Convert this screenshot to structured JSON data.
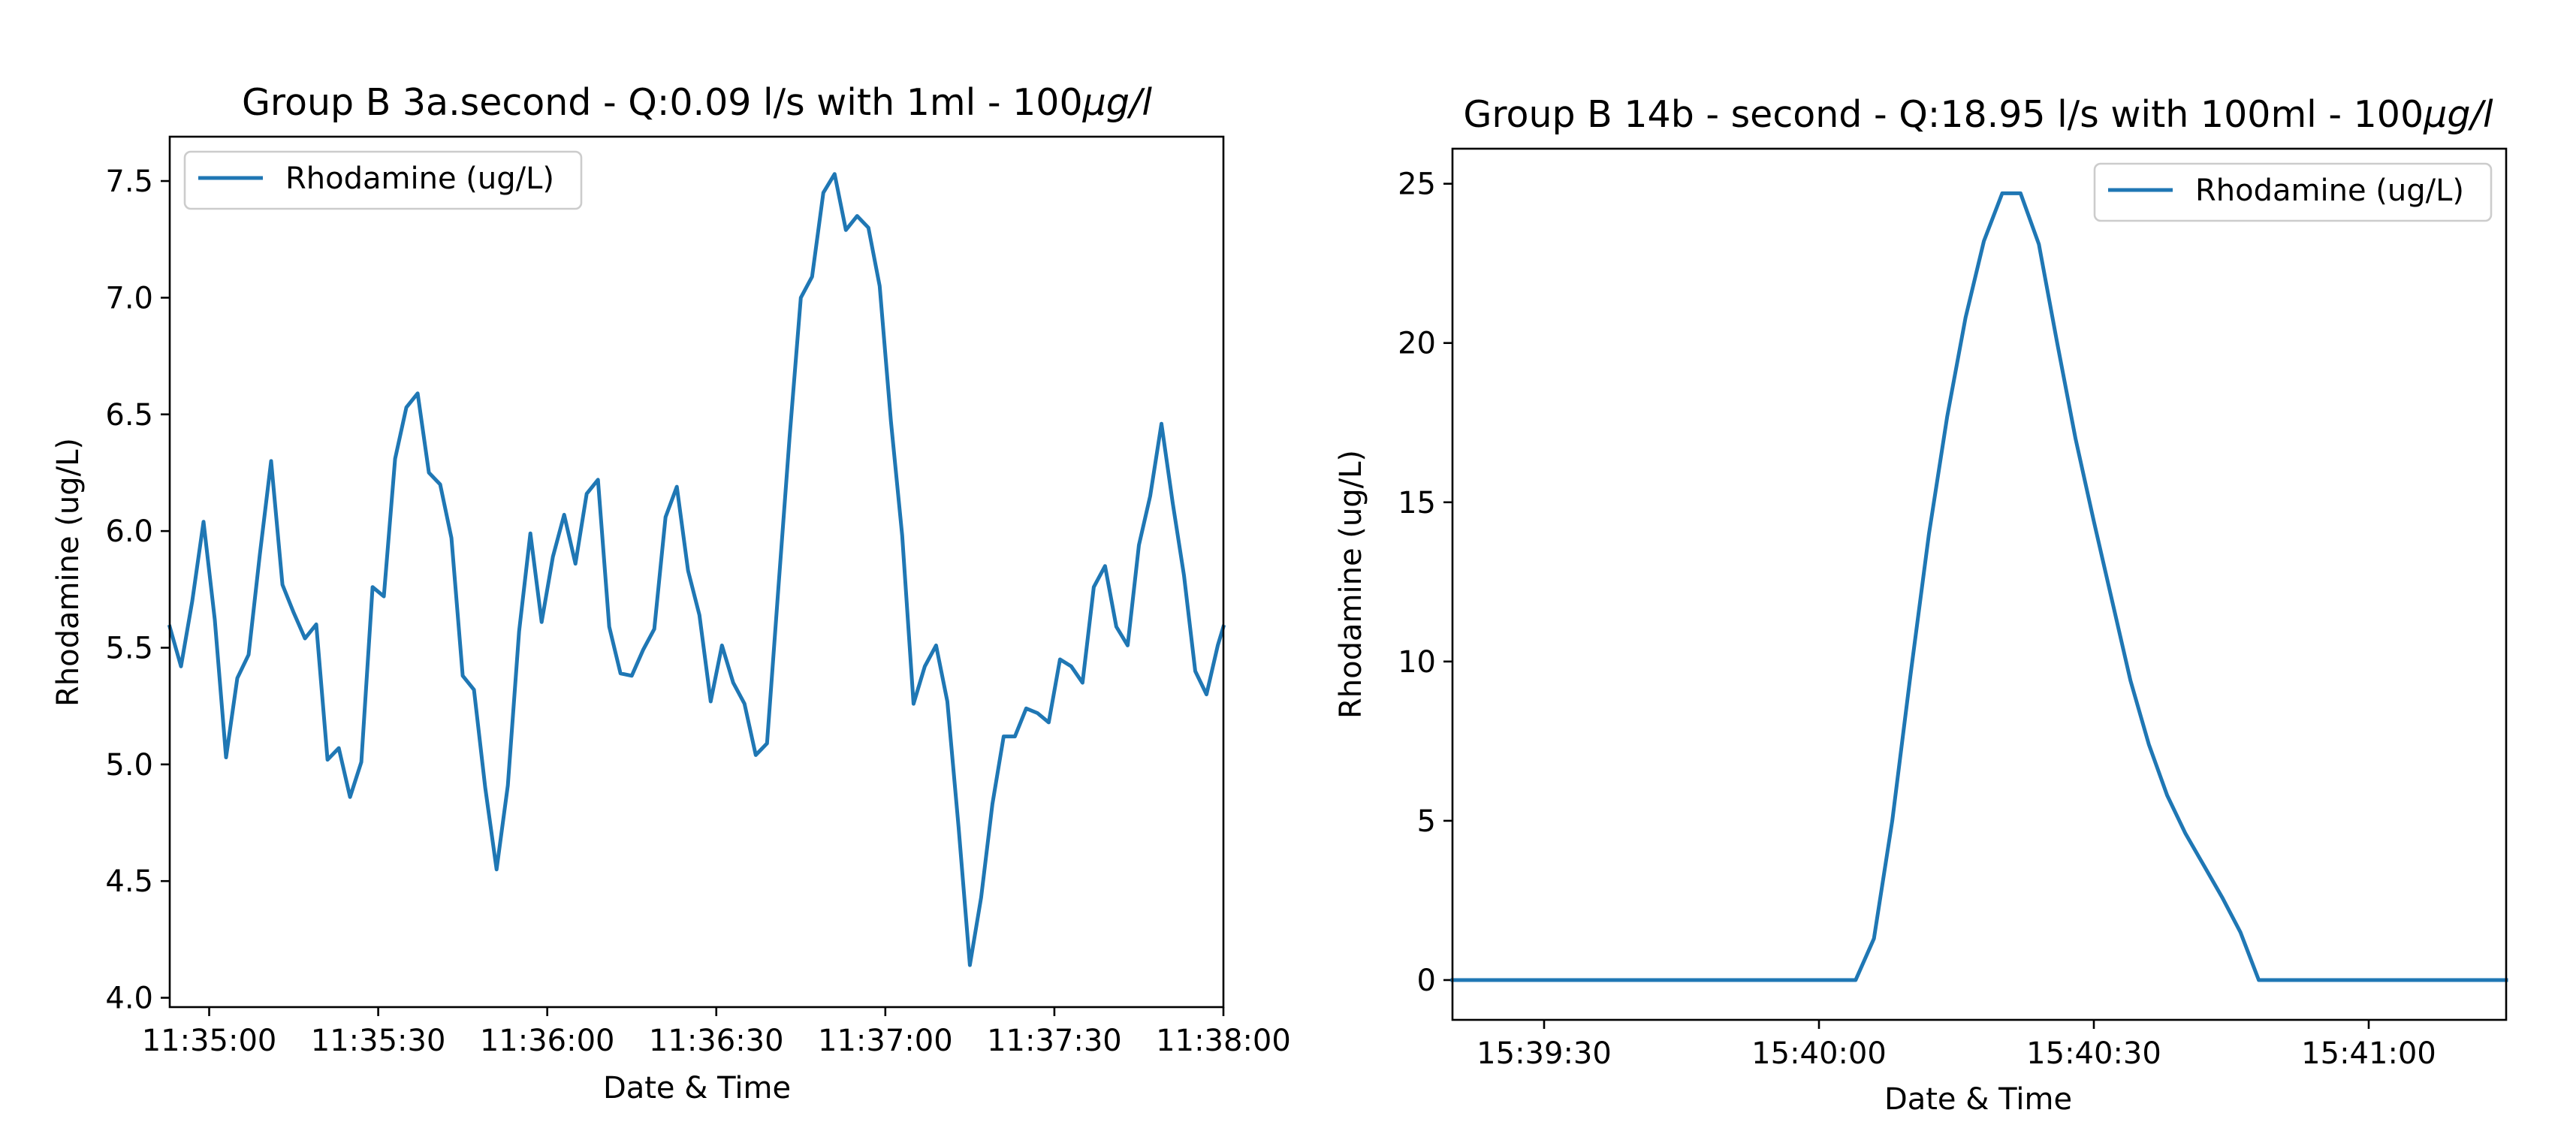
{
  "chart_data": [
    {
      "type": "line",
      "title_main": "Group B 3a.second - Q:0.09 l/s with 1ml - 100",
      "title_unit": "μg/l",
      "xlabel": "Date & Time",
      "ylabel": "Rhodamine (ug/L)",
      "xlim": [
        "11:34:53",
        "11:38:00"
      ],
      "ylim": [
        3.96,
        7.69
      ],
      "x_ticks": [
        "11:35:00",
        "11:35:30",
        "11:36:00",
        "11:36:30",
        "11:37:00",
        "11:37:30",
        "11:38:00"
      ],
      "y_ticks": [
        "4.0",
        "4.5",
        "5.0",
        "5.5",
        "6.0",
        "6.5",
        "7.0",
        "7.5"
      ],
      "legend": "upper left",
      "grid": false,
      "series": [
        {
          "name": "Rhodamine (ug/L)",
          "color": "#1f77b4",
          "x": [
            "11:34:53",
            "11:34:55",
            "11:34:57",
            "11:34:59",
            "11:35:01",
            "11:35:03",
            "11:35:05",
            "11:35:07",
            "11:35:09",
            "11:35:11",
            "11:35:13",
            "11:35:15",
            "11:35:17",
            "11:35:19",
            "11:35:21",
            "11:35:23",
            "11:35:25",
            "11:35:27",
            "11:35:29",
            "11:35:31",
            "11:35:33",
            "11:35:35",
            "11:35:37",
            "11:35:39",
            "11:35:41",
            "11:35:43",
            "11:35:45",
            "11:35:47",
            "11:35:49",
            "11:35:51",
            "11:35:53",
            "11:35:55",
            "11:35:57",
            "11:35:59",
            "11:36:01",
            "11:36:03",
            "11:36:05",
            "11:36:07",
            "11:36:09",
            "11:36:11",
            "11:36:13",
            "11:36:15",
            "11:36:17",
            "11:36:19",
            "11:36:21",
            "11:36:23",
            "11:36:25",
            "11:36:27",
            "11:36:29",
            "11:36:31",
            "11:36:33",
            "11:36:35",
            "11:36:37",
            "11:36:39",
            "11:36:41",
            "11:36:43",
            "11:36:45",
            "11:36:47",
            "11:36:49",
            "11:36:51",
            "11:36:53",
            "11:36:55",
            "11:36:57",
            "11:36:59",
            "11:37:01",
            "11:37:03",
            "11:37:05",
            "11:37:07",
            "11:37:09",
            "11:37:11",
            "11:37:13",
            "11:37:15",
            "11:37:17",
            "11:37:19",
            "11:37:21",
            "11:37:23",
            "11:37:25",
            "11:37:27",
            "11:37:29",
            "11:37:31",
            "11:37:33",
            "11:37:35",
            "11:37:37",
            "11:37:39",
            "11:37:41",
            "11:37:43",
            "11:37:45",
            "11:37:47",
            "11:37:49",
            "11:37:51",
            "11:37:53",
            "11:37:55",
            "11:37:57",
            "11:37:59",
            "11:38:00"
          ],
          "y": [
            5.59,
            5.42,
            5.7,
            6.04,
            5.62,
            5.03,
            5.37,
            5.47,
            5.9,
            6.3,
            5.77,
            5.65,
            5.54,
            5.6,
            5.02,
            5.07,
            4.86,
            5.01,
            5.76,
            5.72,
            6.31,
            6.53,
            6.59,
            6.25,
            6.2,
            5.97,
            5.38,
            5.32,
            4.9,
            4.55,
            4.91,
            5.57,
            5.99,
            5.61,
            5.89,
            6.07,
            5.86,
            6.16,
            6.22,
            5.59,
            5.39,
            5.38,
            5.49,
            5.58,
            6.06,
            6.19,
            5.83,
            5.64,
            5.27,
            5.51,
            5.35,
            5.26,
            5.04,
            5.09,
            5.75,
            6.4,
            7.0,
            7.09,
            7.45,
            7.53,
            7.29,
            7.35,
            7.3,
            7.05,
            6.47,
            5.98,
            5.26,
            5.42,
            5.51,
            5.27,
            4.73,
            4.14,
            4.43,
            4.83,
            5.12,
            5.12,
            5.24,
            5.22,
            5.18,
            5.45,
            5.42,
            5.35,
            5.76,
            5.85,
            5.59,
            5.51,
            5.94,
            6.15,
            6.46,
            6.12,
            5.81,
            5.4,
            5.3,
            5.51,
            5.59
          ]
        }
      ]
    },
    {
      "type": "line",
      "title_main": "Group B 14b - second - Q:18.95 l/s with 100ml - 100",
      "title_unit": "μg/l",
      "xlabel": "Date & Time",
      "ylabel": "Rhodamine (ug/L)",
      "xlim": [
        "15:39:20",
        "15:41:15"
      ],
      "ylim": [
        -1.25,
        26.1
      ],
      "x_ticks": [
        "15:39:30",
        "15:40:00",
        "15:40:30",
        "15:41:00"
      ],
      "y_ticks": [
        "0",
        "5",
        "10",
        "15",
        "20",
        "25"
      ],
      "legend": "upper right",
      "grid": false,
      "series": [
        {
          "name": "Rhodamine (ug/L)",
          "color": "#1f77b4",
          "x": [
            "15:39:20",
            "15:40:04",
            "15:40:06",
            "15:40:08",
            "15:40:10",
            "15:40:12",
            "15:40:14",
            "15:40:16",
            "15:40:18",
            "15:40:20",
            "15:40:22",
            "15:40:24",
            "15:40:26",
            "15:40:28",
            "15:40:30",
            "15:40:32",
            "15:40:34",
            "15:40:36",
            "15:40:38",
            "15:40:40",
            "15:40:42",
            "15:40:44",
            "15:40:46",
            "15:40:48",
            "15:41:15"
          ],
          "y": [
            0,
            0,
            1.3,
            5.0,
            9.6,
            14.0,
            17.7,
            20.8,
            23.2,
            24.7,
            24.7,
            23.1,
            20.0,
            17.0,
            14.4,
            11.9,
            9.4,
            7.4,
            5.8,
            4.6,
            3.6,
            2.6,
            1.5,
            0,
            0
          ]
        }
      ]
    }
  ]
}
